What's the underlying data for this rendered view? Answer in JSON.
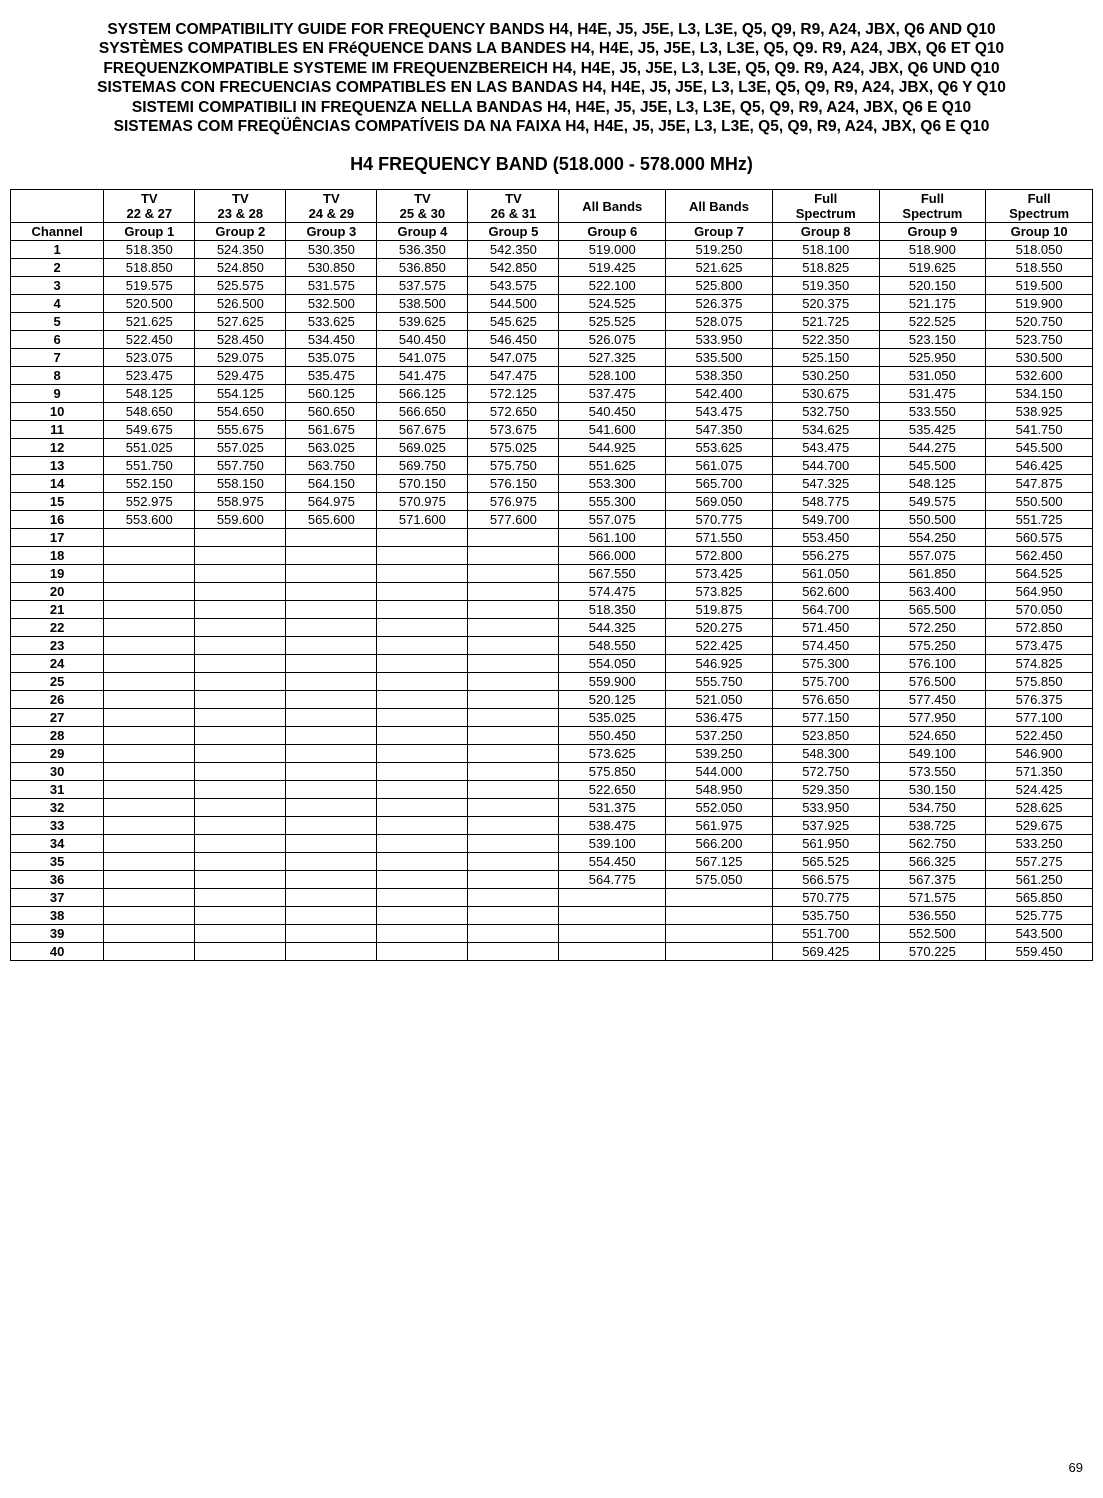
{
  "titles": [
    "SYSTEM COMPATIBILITY GUIDE FOR FREQUENCY BANDS H4, H4E, J5, J5E, L3, L3E, Q5, Q9, R9, A24, JBX, Q6 AND Q10",
    "SYSTÈMES COMPATIBLES EN FRéQUENCE DANS LA BANDES H4, H4E, J5, J5E, L3, L3E, Q5, Q9. R9, A24, JBX, Q6 ET Q10",
    "FREQUENZKOMPATIBLE SYSTEME IM FREQUENZBEREICH H4, H4E, J5, J5E, L3, L3E, Q5, Q9. R9, A24, JBX, Q6 UND Q10",
    "SISTEMAS CON FRECUENCIAS COMPATIBLES EN LAS BANDAS H4, H4E, J5, J5E, L3, L3E, Q5, Q9, R9, A24, JBX, Q6 Y Q10",
    "SISTEMI COMPATIBILI IN FREQUENZA NELLA BANDAS H4, H4E, J5, J5E, L3, L3E, Q5, Q9, R9, A24, JBX, Q6 E Q10",
    "SISTEMAS COM FREQÜÊNCIAS COMPATÍVEIS DA NA FAIXA H4, H4E, J5, J5E, L3, L3E, Q5, Q9, R9, A24, JBX, Q6 E Q10"
  ],
  "band_title": "H4 FREQUENCY BAND (518.000 - 578.000 MHz)",
  "page_number": "69",
  "header_row1": [
    "",
    "TV\n22 & 27",
    "TV\n23 & 28",
    "TV\n24 & 29",
    "TV\n25 & 30",
    "TV\n26 & 31",
    "All Bands",
    "All Bands",
    "Full\nSpectrum",
    "Full\nSpectrum",
    "Full\nSpectrum"
  ],
  "header_row2": [
    "Channel",
    "Group 1",
    "Group 2",
    "Group 3",
    "Group 4",
    "Group 5",
    "Group 6",
    "Group 7",
    "Group 8",
    "Group 9",
    "Group 10"
  ],
  "rows": [
    [
      "1",
      "518.350",
      "524.350",
      "530.350",
      "536.350",
      "542.350",
      "519.000",
      "519.250",
      "518.100",
      "518.900",
      "518.050"
    ],
    [
      "2",
      "518.850",
      "524.850",
      "530.850",
      "536.850",
      "542.850",
      "519.425",
      "521.625",
      "518.825",
      "519.625",
      "518.550"
    ],
    [
      "3",
      "519.575",
      "525.575",
      "531.575",
      "537.575",
      "543.575",
      "522.100",
      "525.800",
      "519.350",
      "520.150",
      "519.500"
    ],
    [
      "4",
      "520.500",
      "526.500",
      "532.500",
      "538.500",
      "544.500",
      "524.525",
      "526.375",
      "520.375",
      "521.175",
      "519.900"
    ],
    [
      "5",
      "521.625",
      "527.625",
      "533.625",
      "539.625",
      "545.625",
      "525.525",
      "528.075",
      "521.725",
      "522.525",
      "520.750"
    ],
    [
      "6",
      "522.450",
      "528.450",
      "534.450",
      "540.450",
      "546.450",
      "526.075",
      "533.950",
      "522.350",
      "523.150",
      "523.750"
    ],
    [
      "7",
      "523.075",
      "529.075",
      "535.075",
      "541.075",
      "547.075",
      "527.325",
      "535.500",
      "525.150",
      "525.950",
      "530.500"
    ],
    [
      "8",
      "523.475",
      "529.475",
      "535.475",
      "541.475",
      "547.475",
      "528.100",
      "538.350",
      "530.250",
      "531.050",
      "532.600"
    ],
    [
      "9",
      "548.125",
      "554.125",
      "560.125",
      "566.125",
      "572.125",
      "537.475",
      "542.400",
      "530.675",
      "531.475",
      "534.150"
    ],
    [
      "10",
      "548.650",
      "554.650",
      "560.650",
      "566.650",
      "572.650",
      "540.450",
      "543.475",
      "532.750",
      "533.550",
      "538.925"
    ],
    [
      "11",
      "549.675",
      "555.675",
      "561.675",
      "567.675",
      "573.675",
      "541.600",
      "547.350",
      "534.625",
      "535.425",
      "541.750"
    ],
    [
      "12",
      "551.025",
      "557.025",
      "563.025",
      "569.025",
      "575.025",
      "544.925",
      "553.625",
      "543.475",
      "544.275",
      "545.500"
    ],
    [
      "13",
      "551.750",
      "557.750",
      "563.750",
      "569.750",
      "575.750",
      "551.625",
      "561.075",
      "544.700",
      "545.500",
      "546.425"
    ],
    [
      "14",
      "552.150",
      "558.150",
      "564.150",
      "570.150",
      "576.150",
      "553.300",
      "565.700",
      "547.325",
      "548.125",
      "547.875"
    ],
    [
      "15",
      "552.975",
      "558.975",
      "564.975",
      "570.975",
      "576.975",
      "555.300",
      "569.050",
      "548.775",
      "549.575",
      "550.500"
    ],
    [
      "16",
      "553.600",
      "559.600",
      "565.600",
      "571.600",
      "577.600",
      "557.075",
      "570.775",
      "549.700",
      "550.500",
      "551.725"
    ],
    [
      "17",
      "",
      "",
      "",
      "",
      "",
      "561.100",
      "571.550",
      "553.450",
      "554.250",
      "560.575"
    ],
    [
      "18",
      "",
      "",
      "",
      "",
      "",
      "566.000",
      "572.800",
      "556.275",
      "557.075",
      "562.450"
    ],
    [
      "19",
      "",
      "",
      "",
      "",
      "",
      "567.550",
      "573.425",
      "561.050",
      "561.850",
      "564.525"
    ],
    [
      "20",
      "",
      "",
      "",
      "",
      "",
      "574.475",
      "573.825",
      "562.600",
      "563.400",
      "564.950"
    ],
    [
      "21",
      "",
      "",
      "",
      "",
      "",
      "518.350",
      "519.875",
      "564.700",
      "565.500",
      "570.050"
    ],
    [
      "22",
      "",
      "",
      "",
      "",
      "",
      "544.325",
      "520.275",
      "571.450",
      "572.250",
      "572.850"
    ],
    [
      "23",
      "",
      "",
      "",
      "",
      "",
      "548.550",
      "522.425",
      "574.450",
      "575.250",
      "573.475"
    ],
    [
      "24",
      "",
      "",
      "",
      "",
      "",
      "554.050",
      "546.925",
      "575.300",
      "576.100",
      "574.825"
    ],
    [
      "25",
      "",
      "",
      "",
      "",
      "",
      "559.900",
      "555.750",
      "575.700",
      "576.500",
      "575.850"
    ],
    [
      "26",
      "",
      "",
      "",
      "",
      "",
      "520.125",
      "521.050",
      "576.650",
      "577.450",
      "576.375"
    ],
    [
      "27",
      "",
      "",
      "",
      "",
      "",
      "535.025",
      "536.475",
      "577.150",
      "577.950",
      "577.100"
    ],
    [
      "28",
      "",
      "",
      "",
      "",
      "",
      "550.450",
      "537.250",
      "523.850",
      "524.650",
      "522.450"
    ],
    [
      "29",
      "",
      "",
      "",
      "",
      "",
      "573.625",
      "539.250",
      "548.300",
      "549.100",
      "546.900"
    ],
    [
      "30",
      "",
      "",
      "",
      "",
      "",
      "575.850",
      "544.000",
      "572.750",
      "573.550",
      "571.350"
    ],
    [
      "31",
      "",
      "",
      "",
      "",
      "",
      "522.650",
      "548.950",
      "529.350",
      "530.150",
      "524.425"
    ],
    [
      "32",
      "",
      "",
      "",
      "",
      "",
      "531.375",
      "552.050",
      "533.950",
      "534.750",
      "528.625"
    ],
    [
      "33",
      "",
      "",
      "",
      "",
      "",
      "538.475",
      "561.975",
      "537.925",
      "538.725",
      "529.675"
    ],
    [
      "34",
      "",
      "",
      "",
      "",
      "",
      "539.100",
      "566.200",
      "561.950",
      "562.750",
      "533.250"
    ],
    [
      "35",
      "",
      "",
      "",
      "",
      "",
      "554.450",
      "567.125",
      "565.525",
      "566.325",
      "557.275"
    ],
    [
      "36",
      "",
      "",
      "",
      "",
      "",
      "564.775",
      "575.050",
      "566.575",
      "567.375",
      "561.250"
    ],
    [
      "37",
      "",
      "",
      "",
      "",
      "",
      "",
      "",
      "570.775",
      "571.575",
      "565.850"
    ],
    [
      "38",
      "",
      "",
      "",
      "",
      "",
      "",
      "",
      "535.750",
      "536.550",
      "525.775"
    ],
    [
      "39",
      "",
      "",
      "",
      "",
      "",
      "",
      "",
      "551.700",
      "552.500",
      "543.500"
    ],
    [
      "40",
      "",
      "",
      "",
      "",
      "",
      "",
      "",
      "569.425",
      "570.225",
      "559.450"
    ]
  ]
}
